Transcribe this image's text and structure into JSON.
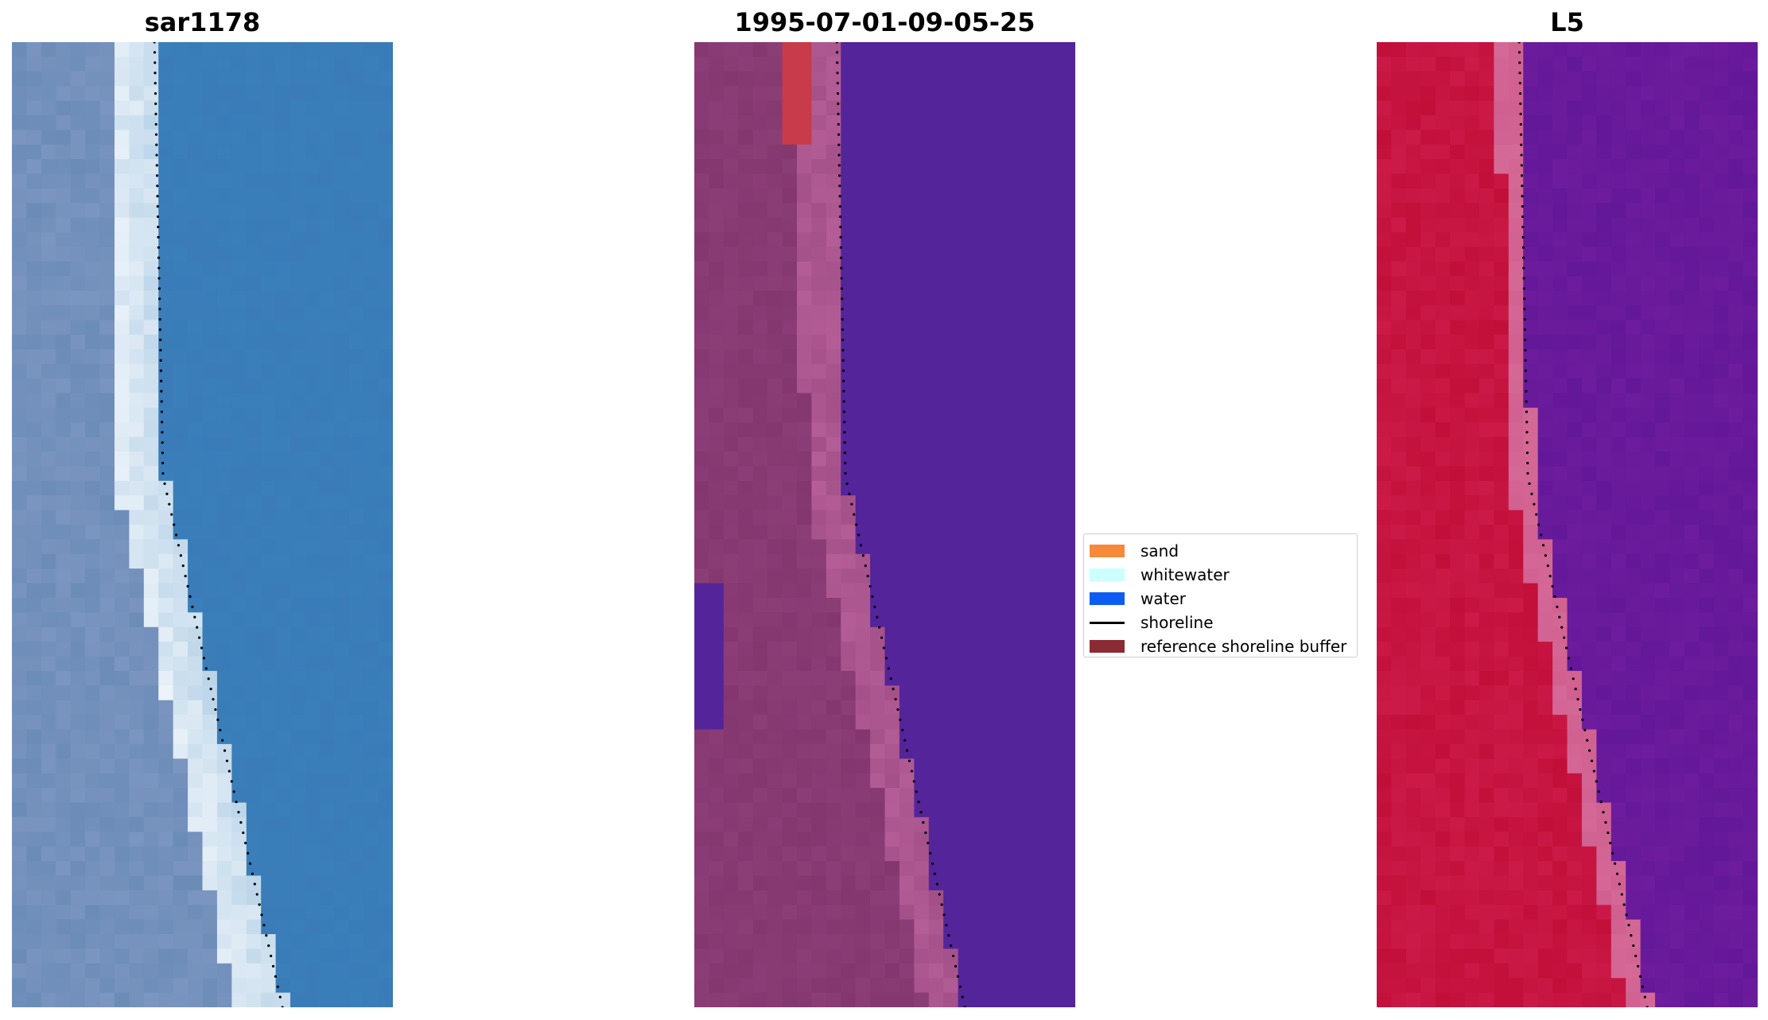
{
  "panels": [
    {
      "title": "sar1178",
      "palette": "rgb"
    },
    {
      "title": "1995-07-01-09-05-25",
      "palette": "classified"
    },
    {
      "title": "L5",
      "palette": "index"
    }
  ],
  "legend": {
    "items": [
      {
        "label": "sand",
        "color": "#F7893A",
        "kind": "patch"
      },
      {
        "label": "whitewater",
        "color": "#CCFFFF",
        "kind": "patch"
      },
      {
        "label": "water",
        "color": "#0D5CF2",
        "kind": "patch"
      },
      {
        "label": "shoreline",
        "color": "#000000",
        "kind": "line"
      },
      {
        "label": "reference shoreline buffer",
        "color": "#8B2B33",
        "kind": "patch"
      }
    ]
  },
  "colors": {
    "rgb_water": "#3A7BB8",
    "rgb_white": "#EEF4FA",
    "rgb_land": "#6C8CB8",
    "classified_water": "#54249A",
    "classified_sand": "#84376F",
    "classified_whitewater": "#B45D96",
    "classified_red": "#C73B4A",
    "index_land": "#C20F3A",
    "index_water": "#6C1C9C",
    "index_edge": "#D06090"
  }
}
